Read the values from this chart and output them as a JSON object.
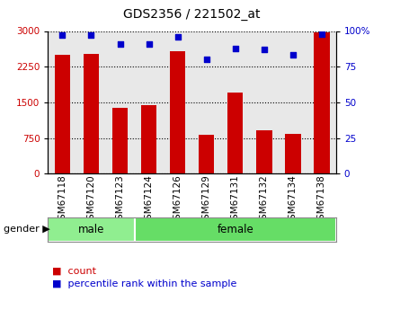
{
  "title": "GDS2356 / 221502_at",
  "samples": [
    "GSM67118",
    "GSM67120",
    "GSM67123",
    "GSM67124",
    "GSM67126",
    "GSM67129",
    "GSM67131",
    "GSM67132",
    "GSM67134",
    "GSM67138"
  ],
  "counts": [
    2500,
    2520,
    1380,
    1440,
    2580,
    820,
    1700,
    920,
    840,
    2980
  ],
  "percentiles": [
    97,
    97,
    91,
    91,
    96,
    80,
    88,
    87,
    83,
    98
  ],
  "bar_color": "#cc0000",
  "dot_color": "#0000cc",
  "ylim_left": [
    0,
    3000
  ],
  "ylim_right": [
    0,
    100
  ],
  "yticks_left": [
    0,
    750,
    1500,
    2250,
    3000
  ],
  "yticks_right": [
    0,
    25,
    50,
    75,
    100
  ],
  "male_count": 3,
  "female_count": 7,
  "male_color": "#90ee90",
  "female_color": "#66dd66",
  "legend_count_label": "count",
  "legend_pct_label": "percentile rank within the sample",
  "gender_label": "gender",
  "plot_bg_color": "#e8e8e8",
  "tick_label_color_left": "#cc0000",
  "tick_label_color_right": "#0000cc"
}
